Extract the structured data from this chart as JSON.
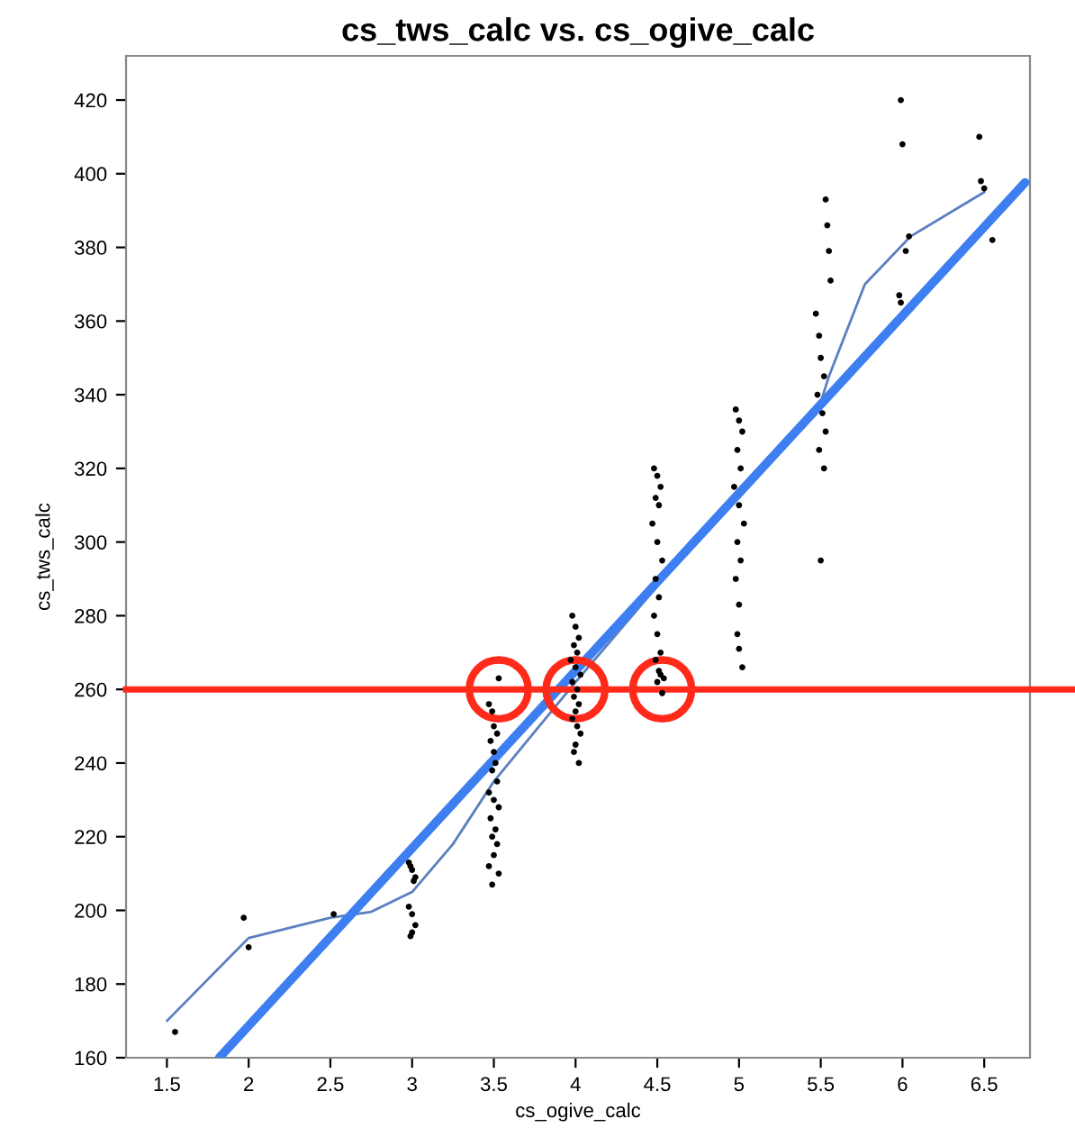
{
  "chart_data": {
    "type": "scatter",
    "title": "cs_tws_calc vs. cs_ogive_calc",
    "xlabel": "cs_ogive_calc",
    "ylabel": "cs_tws_calc",
    "xlim": [
      1.25,
      6.78
    ],
    "ylim": [
      160,
      432
    ],
    "xticks": [
      1.5,
      2,
      2.5,
      3,
      3.5,
      4,
      4.5,
      5,
      5.5,
      6,
      6.5
    ],
    "yticks": [
      160,
      180,
      200,
      220,
      240,
      260,
      280,
      300,
      320,
      340,
      360,
      380,
      400,
      420
    ],
    "grid": false,
    "legend": false,
    "marker": "circle",
    "series": [
      {
        "color": "#000000",
        "x": [
          1.55,
          1.97,
          2.0,
          2.52,
          2.98,
          3.0,
          3.02,
          2.99,
          3.01,
          2.98,
          3.0,
          3.02,
          2.99,
          3.0,
          3.53,
          3.47,
          3.49,
          3.5,
          3.52,
          3.48,
          3.5,
          3.51,
          3.49,
          3.52,
          3.47,
          3.5,
          3.53,
          3.48,
          3.51,
          3.49,
          3.52,
          3.5,
          3.47,
          3.53,
          3.49,
          3.98,
          4.0,
          4.02,
          3.99,
          4.01,
          3.97,
          4.0,
          4.03,
          3.98,
          4.01,
          3.99,
          4.02,
          4.0,
          3.98,
          4.01,
          4.03,
          4.0,
          3.99,
          4.02,
          4.48,
          4.5,
          4.52,
          4.49,
          4.51,
          4.47,
          4.5,
          4.53,
          4.49,
          4.51,
          4.48,
          4.5,
          4.52,
          4.49,
          4.51,
          4.5,
          4.53,
          4.52,
          4.54,
          4.98,
          5.0,
          5.02,
          4.99,
          5.01,
          4.97,
          5.0,
          5.03,
          4.99,
          5.01,
          4.98,
          5.0,
          4.99,
          5.0,
          5.02,
          5.53,
          5.54,
          5.55,
          5.56,
          5.47,
          5.49,
          5.5,
          5.52,
          5.48,
          5.51,
          5.53,
          5.49,
          5.52,
          5.5,
          5.99,
          6.0,
          6.04,
          6.02,
          5.98,
          5.99,
          6.47,
          6.48,
          6.5,
          6.55
        ],
        "values": [
          167,
          198,
          190,
          199,
          213,
          211,
          209,
          212,
          208,
          201,
          199,
          196,
          193,
          194,
          263,
          256,
          254,
          250,
          248,
          246,
          243,
          240,
          238,
          235,
          232,
          230,
          228,
          225,
          222,
          220,
          218,
          215,
          212,
          210,
          207,
          280,
          277,
          274,
          272,
          270,
          268,
          266,
          264,
          262,
          260,
          258,
          256,
          254,
          252,
          250,
          248,
          245,
          243,
          240,
          320,
          318,
          315,
          312,
          310,
          305,
          300,
          295,
          290,
          285,
          280,
          275,
          270,
          268,
          265,
          262,
          259,
          264,
          263,
          336,
          333,
          330,
          325,
          320,
          315,
          310,
          305,
          300,
          295,
          290,
          283,
          275,
          271,
          266,
          393,
          386,
          379,
          371,
          362,
          356,
          350,
          345,
          340,
          335,
          330,
          325,
          320,
          295,
          420,
          408,
          383,
          379,
          367,
          365,
          410,
          398,
          396,
          382
        ]
      },
      {
        "type": "line",
        "color": "#5b7fc0",
        "marker": "none",
        "x": [
          1.5,
          2.0,
          2.5,
          2.75,
          3.0,
          3.25,
          3.5,
          4.0,
          4.5,
          5.0,
          5.5,
          5.55,
          5.77,
          6.05,
          6.5
        ],
        "values": [
          170,
          192.5,
          198,
          199.6,
          205,
          218,
          235,
          262,
          288,
          313,
          338,
          345,
          370,
          383,
          395
        ]
      },
      {
        "type": "line",
        "color": "#3d7ff0",
        "marker": "none",
        "x": [
          1.82,
          6.75
        ],
        "values": [
          160,
          397.6
        ]
      }
    ],
    "ref_lines": [
      {
        "axis": "y",
        "value": 260,
        "color": "#ff2a1a",
        "line_style": "solid"
      }
    ]
  }
}
